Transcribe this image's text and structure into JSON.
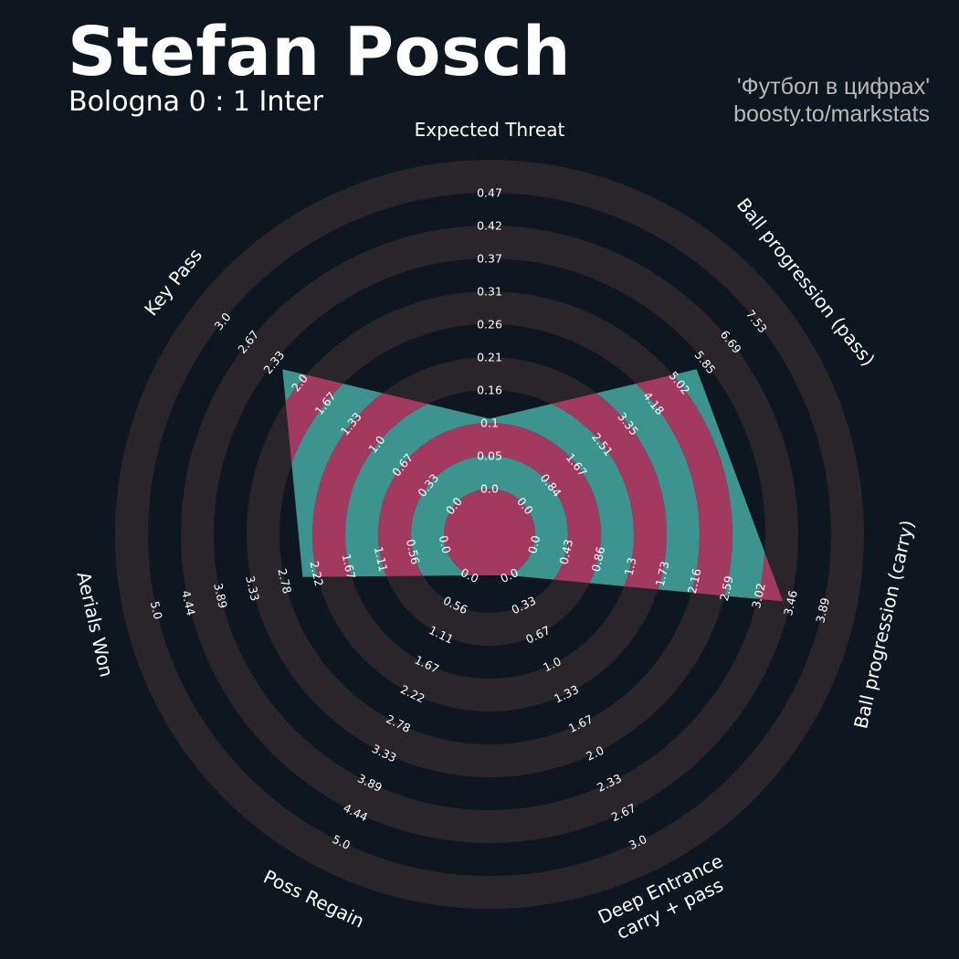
{
  "header": {
    "title": "Stefan Posch",
    "subtitle": "Bologna 0 : 1 Inter",
    "credit_line1": "'Футбол в цифрах'",
    "credit_line2": "boosty.to/markstats"
  },
  "colors": {
    "background": "#0e1720",
    "ring_band": "#2a252b",
    "fill_inner": "#3d938e",
    "fill_outer": "#a23a60",
    "text": "#ffffff"
  },
  "chart_data": {
    "type": "radar",
    "axes": [
      {
        "label": "Expected Threat",
        "ticks": [
          "0.0",
          "0.05",
          "0.1",
          "0.16",
          "0.21",
          "0.26",
          "0.31",
          "0.37",
          "0.42",
          "0.47"
        ],
        "value": 0.1,
        "min": 0.0,
        "max": 0.47
      },
      {
        "label": "Ball progression (pass)",
        "ticks": [
          "0.0",
          "0.84",
          "1.67",
          "2.51",
          "3.35",
          "4.18",
          "5.02",
          "5.85",
          "6.69",
          "7.53"
        ],
        "value": 5.02,
        "min": 0.0,
        "max": 7.53
      },
      {
        "label": "Ball progression (carry)",
        "ticks": [
          "0.0",
          "0.43",
          "0.86",
          "1.3",
          "1.73",
          "2.16",
          "2.59",
          "3.02",
          "3.46",
          "3.89"
        ],
        "value": 3.02,
        "min": 0.0,
        "max": 3.89
      },
      {
        "label": "Deep Entrance\ncarry + pass",
        "ticks": [
          "0.0",
          "0.33",
          "0.67",
          "1.0",
          "1.33",
          "1.67",
          "2.0",
          "2.33",
          "2.67",
          "3.0"
        ],
        "value": 0.0,
        "min": 0.0,
        "max": 3.0
      },
      {
        "label": "Poss Regain",
        "ticks": [
          "0.0",
          "0.56",
          "1.11",
          "1.67",
          "2.22",
          "2.78",
          "3.33",
          "3.89",
          "4.44",
          "5.0"
        ],
        "value": 0.0,
        "min": 0.0,
        "max": 5.0
      },
      {
        "label": "Aerials Won",
        "ticks": [
          "0.0",
          "0.56",
          "1.11",
          "1.67",
          "2.22",
          "2.78",
          "3.33",
          "3.89",
          "4.44",
          "5.0"
        ],
        "value": 2.22,
        "min": 0.0,
        "max": 5.0
      },
      {
        "label": "Key Pass",
        "ticks": [
          "0.0",
          "0.33",
          "0.67",
          "1.0",
          "1.33",
          "1.67",
          "2.0",
          "2.33",
          "2.67",
          "3.0"
        ],
        "value": 2.0,
        "min": 0.0,
        "max": 3.0
      }
    ]
  }
}
